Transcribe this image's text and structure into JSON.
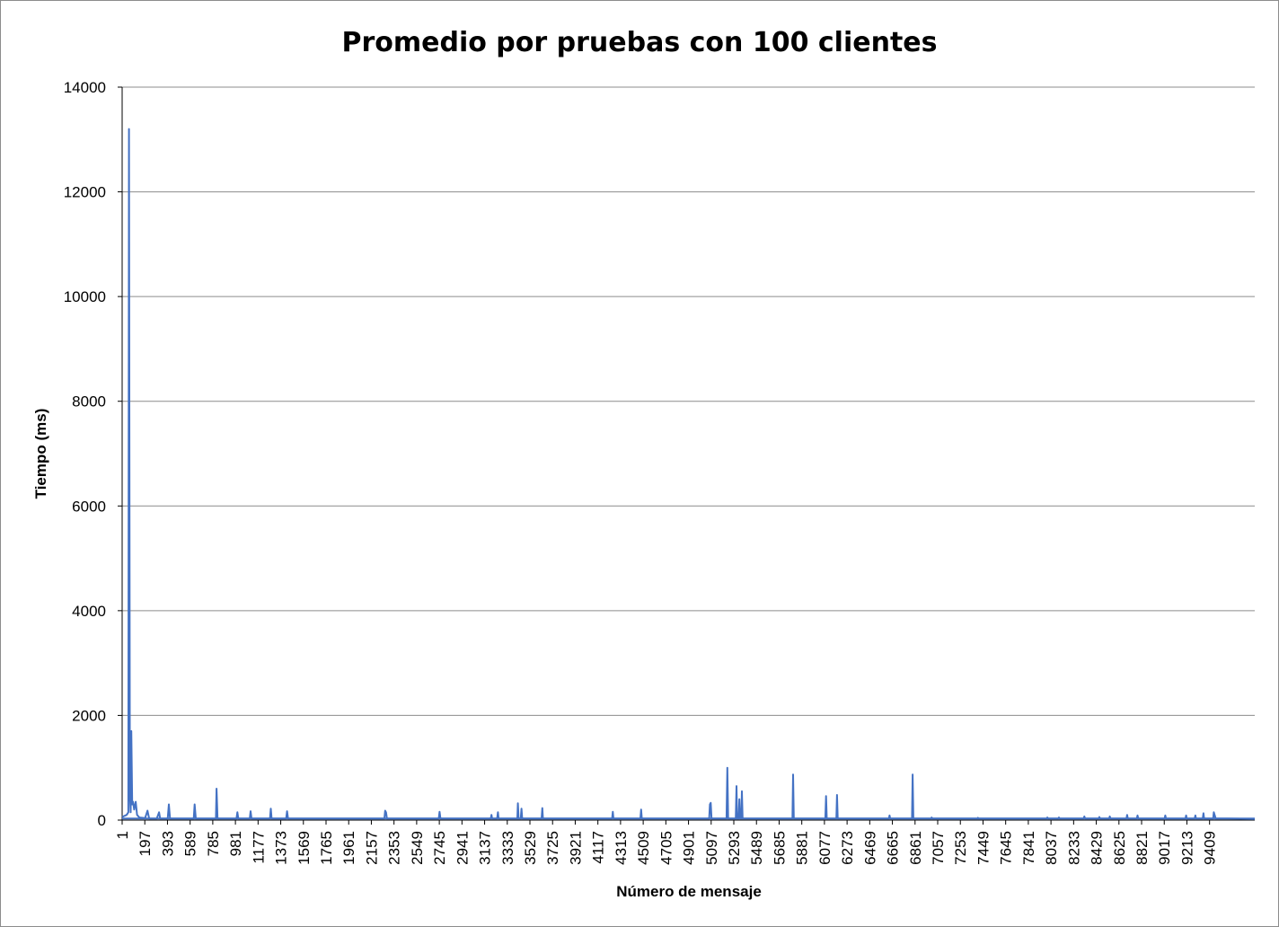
{
  "chart_data": {
    "type": "line",
    "title": "Promedio por pruebas con 100 clientes",
    "xlabel": "Número de mensaje",
    "ylabel": "Tiempo (ms)",
    "ylim": [
      0,
      14000
    ],
    "yticks": [
      "0",
      "2000",
      "4000",
      "6000",
      "8000",
      "10000",
      "12000",
      "14000"
    ],
    "xticks": [
      "1",
      "197",
      "393",
      "589",
      "785",
      "981",
      "1177",
      "1373",
      "1569",
      "1765",
      "1961",
      "2157",
      "2353",
      "2549",
      "2745",
      "2941",
      "3137",
      "3333",
      "3529",
      "3725",
      "3921",
      "4117",
      "4313",
      "4509",
      "4705",
      "4901",
      "5097",
      "5293",
      "5489",
      "5685",
      "5881",
      "6077",
      "6273",
      "6469",
      "6665",
      "6861",
      "7057",
      "7253",
      "7449",
      "7645",
      "7841",
      "8037",
      "8233",
      "8429",
      "8625",
      "8821",
      "9017",
      "9213",
      "9409"
    ],
    "xlim": [
      1,
      9800
    ],
    "grid": "horizontal",
    "legend": "none",
    "line_color": "#4472c4",
    "baseline": 30,
    "series": [
      {
        "points": [
          [
            1,
            60
          ],
          [
            40,
            100
          ],
          [
            55,
            150
          ],
          [
            60,
            13200
          ],
          [
            68,
            500
          ],
          [
            75,
            150
          ],
          [
            80,
            1700
          ],
          [
            88,
            300
          ],
          [
            95,
            350
          ],
          [
            105,
            200
          ],
          [
            118,
            350
          ],
          [
            130,
            100
          ],
          [
            150,
            50
          ],
          [
            200,
            40
          ],
          [
            220,
            180
          ],
          [
            235,
            30
          ],
          [
            300,
            30
          ],
          [
            320,
            150
          ],
          [
            330,
            30
          ],
          [
            395,
            30
          ],
          [
            405,
            300
          ],
          [
            415,
            30
          ],
          [
            500,
            30
          ],
          [
            620,
            30
          ],
          [
            628,
            300
          ],
          [
            638,
            30
          ],
          [
            770,
            30
          ],
          [
            812,
            30
          ],
          [
            818,
            600
          ],
          [
            826,
            30
          ],
          [
            990,
            30
          ],
          [
            998,
            150
          ],
          [
            1006,
            30
          ],
          [
            1105,
            30
          ],
          [
            1112,
            170
          ],
          [
            1120,
            30
          ],
          [
            1280,
            30
          ],
          [
            1287,
            220
          ],
          [
            1294,
            30
          ],
          [
            1420,
            30
          ],
          [
            1428,
            170
          ],
          [
            1436,
            30
          ],
          [
            2270,
            30
          ],
          [
            2276,
            180
          ],
          [
            2284,
            150
          ],
          [
            2292,
            30
          ],
          [
            2740,
            30
          ],
          [
            2747,
            160
          ],
          [
            2755,
            30
          ],
          [
            3190,
            30
          ],
          [
            3196,
            100
          ],
          [
            3202,
            30
          ],
          [
            3245,
            30
          ],
          [
            3252,
            150
          ],
          [
            3258,
            30
          ],
          [
            3420,
            30
          ],
          [
            3425,
            320
          ],
          [
            3431,
            30
          ],
          [
            3450,
            30
          ],
          [
            3456,
            220
          ],
          [
            3462,
            30
          ],
          [
            3630,
            30
          ],
          [
            3636,
            230
          ],
          [
            3642,
            30
          ],
          [
            4240,
            30
          ],
          [
            4246,
            160
          ],
          [
            4252,
            30
          ],
          [
            4485,
            30
          ],
          [
            4491,
            200
          ],
          [
            4497,
            30
          ],
          [
            5080,
            30
          ],
          [
            5086,
            300
          ],
          [
            5093,
            330
          ],
          [
            5100,
            30
          ],
          [
            5230,
            30
          ],
          [
            5237,
            1000
          ],
          [
            5244,
            30
          ],
          [
            5310,
            30
          ],
          [
            5316,
            650
          ],
          [
            5322,
            30
          ],
          [
            5335,
            30
          ],
          [
            5341,
            400
          ],
          [
            5347,
            30
          ],
          [
            5358,
            30
          ],
          [
            5363,
            550
          ],
          [
            5369,
            30
          ],
          [
            5800,
            30
          ],
          [
            5806,
            870
          ],
          [
            5812,
            30
          ],
          [
            6085,
            30
          ],
          [
            6091,
            460
          ],
          [
            6097,
            30
          ],
          [
            6180,
            30
          ],
          [
            6186,
            480
          ],
          [
            6192,
            30
          ],
          [
            6635,
            30
          ],
          [
            6640,
            90
          ],
          [
            6646,
            30
          ],
          [
            6835,
            30
          ],
          [
            6840,
            870
          ],
          [
            6846,
            30
          ],
          [
            7000,
            30
          ],
          [
            7005,
            50
          ],
          [
            7011,
            30
          ],
          [
            7400,
            30
          ],
          [
            7405,
            45
          ],
          [
            7411,
            30
          ],
          [
            8000,
            30
          ],
          [
            8006,
            50
          ],
          [
            8012,
            30
          ],
          [
            8100,
            30
          ],
          [
            8106,
            50
          ],
          [
            8112,
            30
          ],
          [
            8320,
            30
          ],
          [
            8326,
            70
          ],
          [
            8332,
            30
          ],
          [
            8450,
            30
          ],
          [
            8456,
            60
          ],
          [
            8462,
            30
          ],
          [
            8540,
            30
          ],
          [
            8546,
            70
          ],
          [
            8552,
            30
          ],
          [
            8690,
            30
          ],
          [
            8696,
            100
          ],
          [
            8702,
            30
          ],
          [
            8780,
            30
          ],
          [
            8786,
            90
          ],
          [
            8792,
            30
          ],
          [
            9020,
            30
          ],
          [
            9026,
            90
          ],
          [
            9032,
            30
          ],
          [
            9200,
            30
          ],
          [
            9206,
            90
          ],
          [
            9212,
            30
          ],
          [
            9280,
            30
          ],
          [
            9286,
            90
          ],
          [
            9292,
            30
          ],
          [
            9350,
            30
          ],
          [
            9356,
            130
          ],
          [
            9362,
            30
          ],
          [
            9440,
            30
          ],
          [
            9446,
            150
          ],
          [
            9454,
            90
          ],
          [
            9462,
            30
          ],
          [
            9560,
            30
          ],
          [
            9800,
            20
          ]
        ]
      }
    ]
  }
}
